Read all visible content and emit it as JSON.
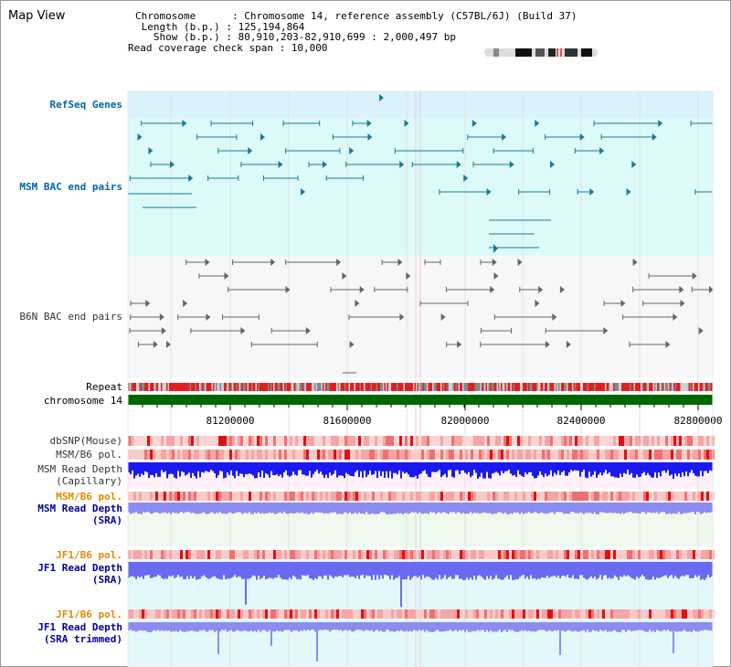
{
  "header": {
    "title": "Map View",
    "chromosome_line": "Chromosome      : Chromosome 14, reference assembly (C57BL/6J) (Build 37)",
    "length_line": " Length (b.p.) : 125,194,864",
    "show_line": "   Show (b.p.) : 80,910,203-82,910,699 : 2,000,497 bp",
    "coverage_line": "Read coverage check span : 10,000"
  },
  "tracks": {
    "refseq": "RefSeq Genes",
    "msm_bac": "MSM BAC end pairs",
    "b6n_bac": "B6N BAC end pairs",
    "repeat": "Repeat",
    "chromosome": "chromosome 14",
    "dbsnp": "dbSNP(Mouse)",
    "msm_b6_pol_1": "MSM/B6 pol.",
    "msm_depth_cap_1": "MSM Read Depth",
    "msm_depth_cap_2": "(Capillary)",
    "msm_b6_pol_2": "MSM/B6 pol.",
    "msm_depth_sra_1": "MSM Read Depth",
    "msm_depth_sra_2": "(SRA)",
    "jf1_b6_pol_1": "JF1/B6 pol.",
    "jf1_depth_sra_1": "JF1 Read Depth",
    "jf1_depth_sra_2": "(SRA)",
    "jf1_b6_pol_2": "JF1/B6 pol.",
    "jf1_depth_trim_1": "JF1 Read Depth",
    "jf1_depth_trim_2": "(SRA trimmed)"
  },
  "axis": {
    "ticks": [
      "81200000",
      "81600000",
      "82000000",
      "82400000",
      "82800000"
    ]
  },
  "colors": {
    "teal": "#1a7a99",
    "grey_feature": "#666666",
    "repeat_red": "#e02020",
    "chrom_green": "#006600",
    "depth_blue": "#1a1aee",
    "depth_lilac": "#8c8cf0",
    "pol_pink": "#f29999"
  }
}
